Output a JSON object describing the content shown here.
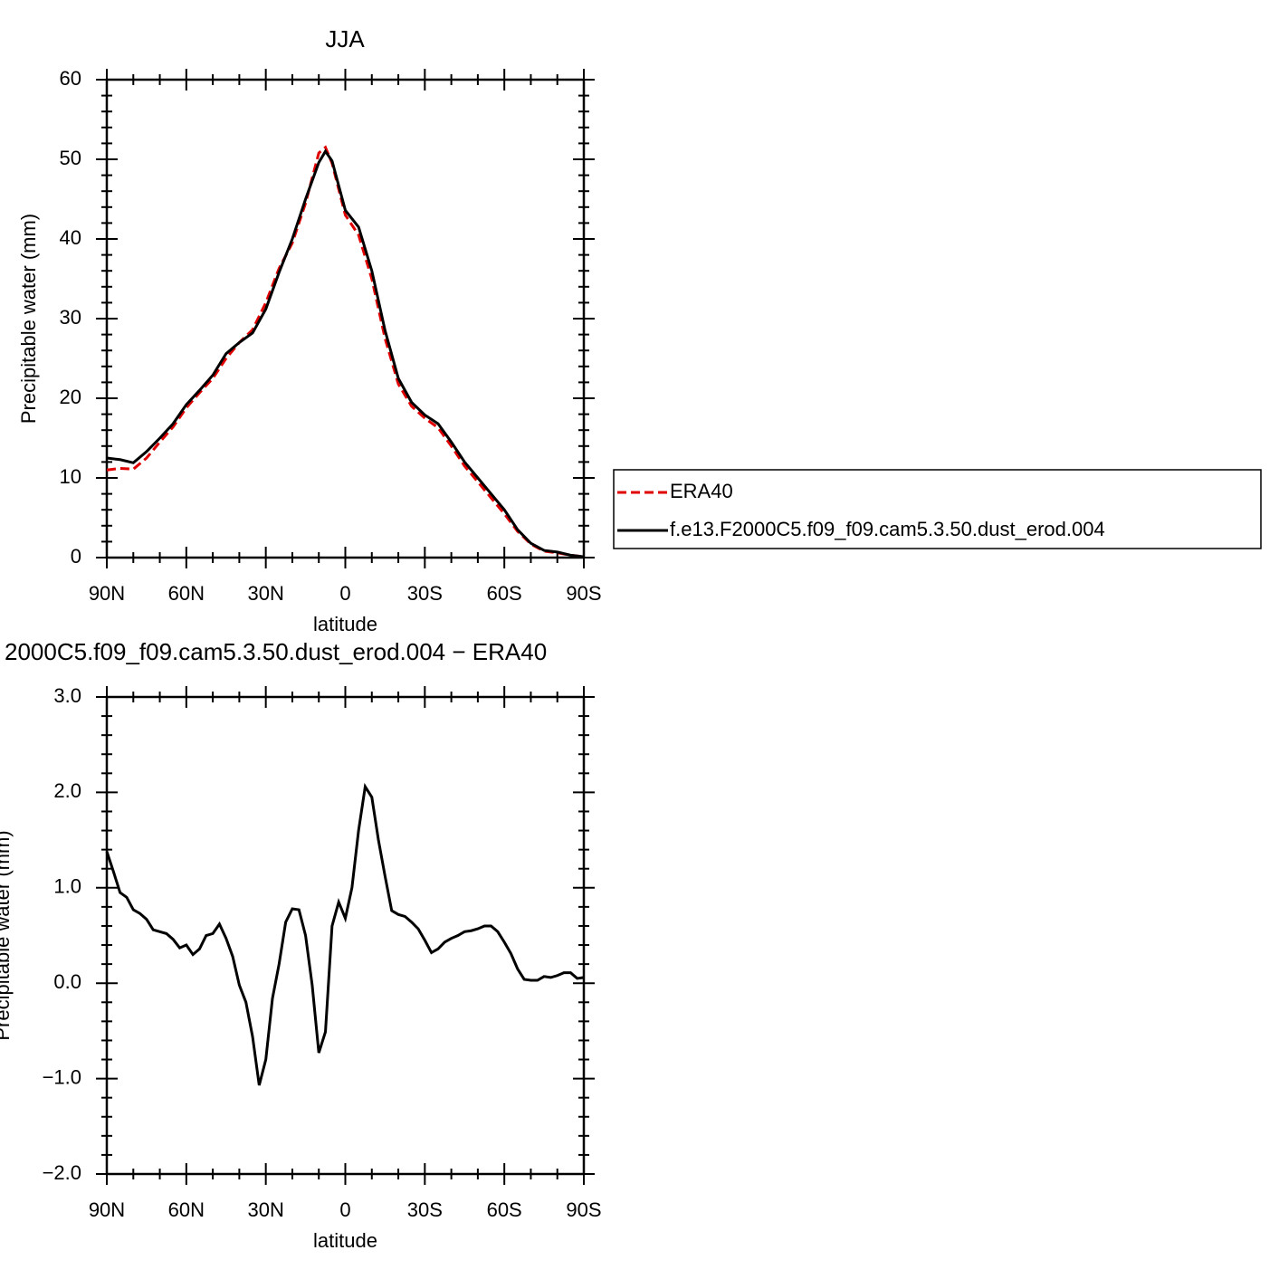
{
  "chart_data": [
    {
      "type": "line",
      "title": "JJA",
      "ylabel": "Precipitable water (mm)",
      "xlabel": "latitude",
      "x": [
        90,
        85,
        80,
        75,
        70,
        65,
        60,
        55,
        50,
        45,
        40,
        35,
        30,
        25,
        20,
        15,
        10,
        7.5,
        5,
        0,
        -5,
        -10,
        -15,
        -20,
        -25,
        -30,
        -35,
        -40,
        -45,
        -50,
        -55,
        -60,
        -65,
        -70,
        -75,
        -80,
        -85,
        -90
      ],
      "series": [
        {
          "name": "ERA40",
          "color": "#e00000",
          "dash": "dashed",
          "values": [
            11.0,
            11.2,
            11.1,
            12.5,
            14.5,
            16.4,
            18.8,
            20.7,
            22.5,
            25.0,
            27.0,
            28.6,
            32.0,
            36.3,
            39.5,
            44.5,
            50.8,
            51.5,
            49.5,
            43.0,
            40.5,
            35.0,
            27.5,
            21.8,
            19.0,
            17.5,
            16.3,
            14.0,
            11.5,
            9.5,
            7.5,
            5.5,
            3.3,
            1.7,
            0.8,
            0.6,
            0.3,
            0.1
          ]
        },
        {
          "name": "f.e13.F2000C5.f09_f09.cam5.3.50.dust_erod.004",
          "color": "#000000",
          "dash": "solid",
          "values": [
            12.5,
            12.3,
            11.9,
            13.3,
            15.0,
            16.8,
            19.2,
            21.0,
            22.9,
            25.6,
            27.0,
            28.2,
            31.2,
            35.8,
            40.0,
            45.0,
            49.6,
            51.0,
            49.8,
            43.6,
            41.5,
            36.0,
            28.5,
            22.5,
            19.5,
            17.9,
            16.8,
            14.5,
            12.0,
            10.0,
            8.0,
            6.0,
            3.5,
            1.8,
            0.9,
            0.7,
            0.3,
            0.1
          ]
        }
      ],
      "xlim": [
        90,
        -90
      ],
      "xticks": [
        {
          "value": 90,
          "label": "90N"
        },
        {
          "value": 60,
          "label": "60N"
        },
        {
          "value": 30,
          "label": "30N"
        },
        0,
        {
          "value": -30,
          "label": "30S"
        },
        {
          "value": -60,
          "label": "60S"
        },
        {
          "value": -90,
          "label": "90S"
        }
      ],
      "ylim": [
        0,
        60
      ],
      "yticks": [
        0,
        10,
        20,
        30,
        40,
        50,
        60
      ],
      "legend": "right"
    },
    {
      "type": "line",
      "title": "2000C5.f09_f09.cam5.3.50.dust_erod.004 − ERA40",
      "ylabel": "Precipitable water (mm)",
      "xlabel": "latitude",
      "x": [
        90,
        87.5,
        85,
        82.5,
        80,
        77.5,
        75,
        72.5,
        70,
        67.5,
        65,
        62.5,
        60,
        57.5,
        55,
        52.5,
        50,
        47.5,
        45,
        42.5,
        40,
        37.5,
        35,
        32.5,
        30,
        27.5,
        25,
        22.5,
        20,
        17.5,
        15,
        12.5,
        10,
        7.5,
        5,
        2.5,
        0,
        -2.5,
        -5,
        -7.5,
        -10,
        -12.5,
        -15,
        -17.5,
        -20,
        -22.5,
        -25,
        -27.5,
        -30,
        -32.5,
        -35,
        -37.5,
        -40,
        -42.5,
        -45,
        -47.5,
        -50,
        -52.5,
        -55,
        -57.5,
        -60,
        -62.5,
        -65,
        -67.5,
        -70,
        -72.5,
        -75,
        -77.5,
        -80,
        -82.5,
        -85,
        -87.5,
        -90
      ],
      "color": "#000000",
      "values": [
        1.38,
        1.17,
        0.95,
        0.9,
        0.77,
        0.73,
        0.67,
        0.56,
        0.54,
        0.52,
        0.46,
        0.37,
        0.4,
        0.3,
        0.36,
        0.5,
        0.52,
        0.62,
        0.47,
        0.28,
        -0.02,
        -0.2,
        -0.56,
        -1.07,
        -0.8,
        -0.16,
        0.2,
        0.64,
        0.78,
        0.77,
        0.5,
        -0.02,
        -0.73,
        -0.51,
        0.6,
        0.85,
        0.68,
        1.0,
        1.6,
        2.06,
        1.95,
        1.5,
        1.12,
        0.76,
        0.72,
        0.7,
        0.64,
        0.57,
        0.45,
        0.32,
        0.36,
        0.43,
        0.47,
        0.5,
        0.54,
        0.55,
        0.57,
        0.6,
        0.6,
        0.54,
        0.43,
        0.31,
        0.15,
        0.04,
        0.03,
        0.03,
        0.07,
        0.06,
        0.08,
        0.11,
        0.11,
        0.05,
        0.06
      ],
      "xlim": [
        90,
        -90
      ],
      "xticks": [
        {
          "value": 90,
          "label": "90N"
        },
        {
          "value": 60,
          "label": "60N"
        },
        {
          "value": 30,
          "label": "30N"
        },
        0,
        {
          "value": -30,
          "label": "30S"
        },
        {
          "value": -60,
          "label": "60S"
        },
        {
          "value": -90,
          "label": "90S"
        }
      ],
      "ylim": [
        -2,
        3
      ],
      "yticks": [
        {
          "value": -2,
          "label": "−2.0"
        },
        {
          "value": -1,
          "label": "−1.0"
        },
        {
          "value": 0,
          "label": "0.0"
        },
        {
          "value": 1,
          "label": "1.0"
        },
        {
          "value": 2,
          "label": "2.0"
        },
        {
          "value": 3,
          "label": "3.0"
        }
      ]
    }
  ]
}
